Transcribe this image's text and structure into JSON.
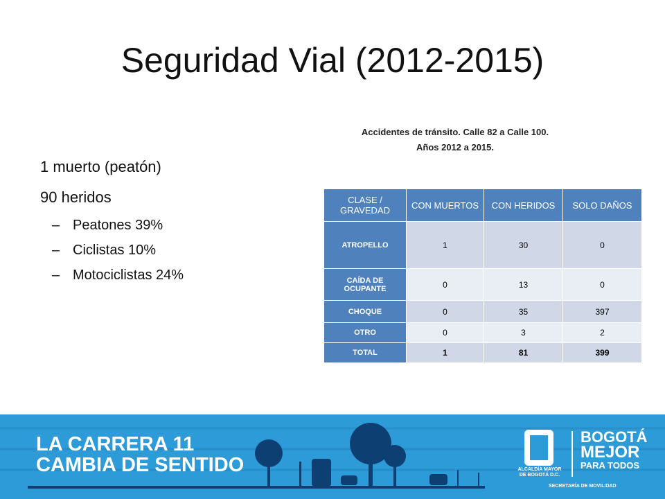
{
  "title": "Seguridad Vial (2012-2015)",
  "bullets": [
    "1 muerto (peatón)",
    "90 heridos"
  ],
  "sub_bullets": [
    "Peatones 39%",
    "Ciclistas 10%",
    "Motociclistas 24%"
  ],
  "table": {
    "caption": [
      "Accidentes de tránsito. Calle 82 a Calle 100.",
      "Años 2012 a 2015."
    ],
    "header": [
      "CLASE / GRAVEDAD",
      "CON MUERTOS",
      "CON HERIDOS",
      "SOLO DAÑOS"
    ],
    "rows": [
      [
        "ATROPELLO",
        1,
        30,
        0
      ],
      [
        "CAÍDA DE OCUPANTE",
        0,
        13,
        0
      ],
      [
        "CHOQUE",
        0,
        35,
        397
      ],
      [
        "OTRO",
        0,
        3,
        2
      ],
      [
        "TOTAL",
        1,
        81,
        399
      ]
    ]
  },
  "banner": {
    "headline": [
      "LA CARRERA 11",
      "CAMBIA DE SENTIDO"
    ],
    "logo_left": [
      "ALCALDÍA MAYOR",
      "DE BOGOTÁ D.C."
    ],
    "logo_right": [
      "BOGOTÁ",
      "MEJOR",
      "PARA TODOS"
    ],
    "footer": "SECRETARÍA DE MOVILIDAD"
  }
}
